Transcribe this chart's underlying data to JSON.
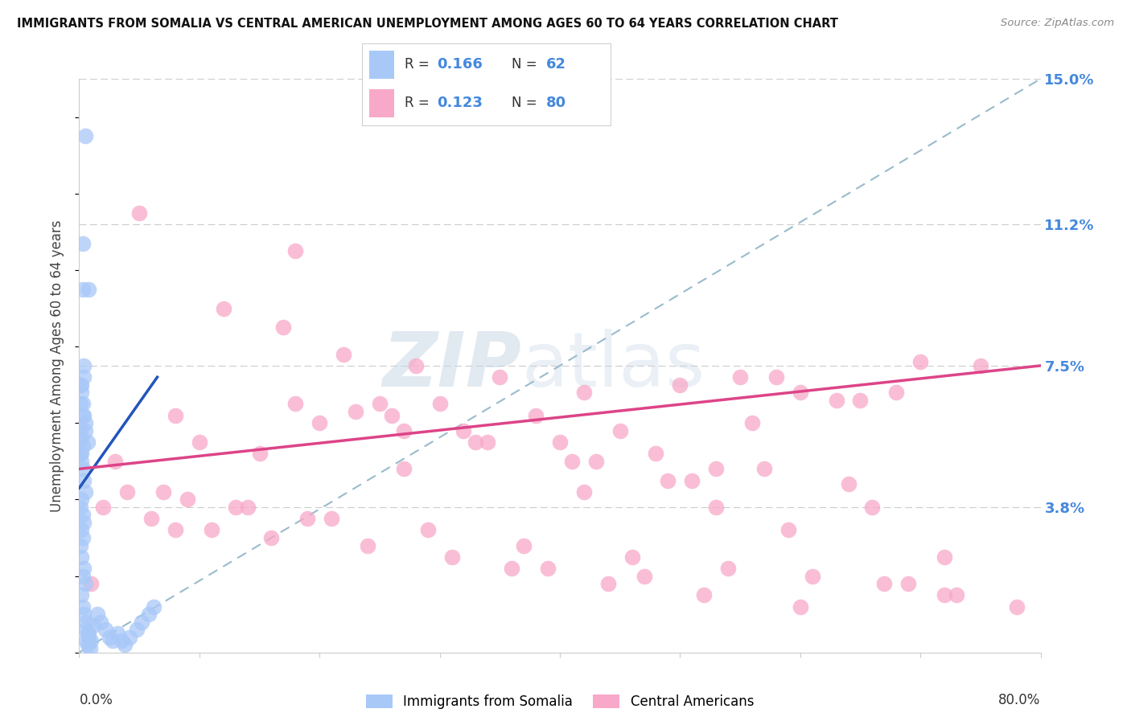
{
  "title": "IMMIGRANTS FROM SOMALIA VS CENTRAL AMERICAN UNEMPLOYMENT AMONG AGES 60 TO 64 YEARS CORRELATION CHART",
  "source": "Source: ZipAtlas.com",
  "ylabel": "Unemployment Among Ages 60 to 64 years",
  "xlim": [
    0.0,
    0.8
  ],
  "ylim": [
    0.0,
    0.15
  ],
  "ytick_vals": [
    0.038,
    0.075,
    0.112,
    0.15
  ],
  "ytick_labels": [
    "3.8%",
    "7.5%",
    "11.2%",
    "15.0%"
  ],
  "somalia_color": "#a8c8f8",
  "central_color": "#f8a8c8",
  "somalia_line_color": "#2255bb",
  "central_line_color": "#dd4488",
  "dashed_line_color": "#99bbcc",
  "somalia_x": [
    0.005,
    0.003,
    0.008,
    0.004,
    0.002,
    0.001,
    0.003,
    0.005,
    0.007,
    0.002,
    0.004,
    0.001,
    0.002,
    0.003,
    0.004,
    0.005,
    0.001,
    0.002,
    0.003,
    0.001,
    0.002,
    0.003,
    0.004,
    0.005,
    0.002,
    0.001,
    0.003,
    0.004,
    0.002,
    0.003,
    0.001,
    0.002,
    0.004,
    0.003,
    0.005,
    0.002,
    0.003,
    0.004,
    0.006,
    0.005,
    0.007,
    0.008,
    0.006,
    0.007,
    0.009,
    0.01,
    0.008,
    0.012,
    0.015,
    0.018,
    0.022,
    0.025,
    0.028,
    0.032,
    0.035,
    0.038,
    0.042,
    0.048,
    0.052,
    0.058,
    0.062,
    0.003
  ],
  "somalia_y": [
    0.135,
    0.107,
    0.095,
    0.075,
    0.07,
    0.065,
    0.062,
    0.058,
    0.055,
    0.052,
    0.072,
    0.07,
    0.068,
    0.065,
    0.062,
    0.06,
    0.058,
    0.056,
    0.054,
    0.052,
    0.05,
    0.048,
    0.045,
    0.042,
    0.04,
    0.038,
    0.036,
    0.034,
    0.032,
    0.03,
    0.028,
    0.025,
    0.022,
    0.02,
    0.018,
    0.015,
    0.012,
    0.01,
    0.008,
    0.006,
    0.005,
    0.004,
    0.003,
    0.002,
    0.001,
    0.003,
    0.005,
    0.007,
    0.01,
    0.008,
    0.006,
    0.004,
    0.003,
    0.005,
    0.003,
    0.002,
    0.004,
    0.006,
    0.008,
    0.01,
    0.012,
    0.095
  ],
  "central_x": [
    0.05,
    0.18,
    0.22,
    0.28,
    0.35,
    0.42,
    0.5,
    0.58,
    0.65,
    0.7,
    0.75,
    0.03,
    0.08,
    0.12,
    0.17,
    0.23,
    0.3,
    0.38,
    0.45,
    0.55,
    0.6,
    0.1,
    0.15,
    0.25,
    0.32,
    0.4,
    0.48,
    0.56,
    0.63,
    0.68,
    0.72,
    0.78,
    0.04,
    0.09,
    0.14,
    0.2,
    0.26,
    0.33,
    0.41,
    0.49,
    0.57,
    0.64,
    0.02,
    0.06,
    0.11,
    0.16,
    0.24,
    0.31,
    0.39,
    0.47,
    0.53,
    0.59,
    0.66,
    0.01,
    0.07,
    0.13,
    0.19,
    0.27,
    0.36,
    0.44,
    0.52,
    0.6,
    0.67,
    0.73,
    0.21,
    0.29,
    0.37,
    0.46,
    0.54,
    0.61,
    0.69,
    0.34,
    0.43,
    0.51,
    0.08,
    0.42,
    0.18,
    0.72,
    0.27,
    0.53
  ],
  "central_y": [
    0.115,
    0.105,
    0.078,
    0.075,
    0.072,
    0.068,
    0.07,
    0.072,
    0.066,
    0.076,
    0.075,
    0.05,
    0.062,
    0.09,
    0.085,
    0.063,
    0.065,
    0.062,
    0.058,
    0.072,
    0.068,
    0.055,
    0.052,
    0.065,
    0.058,
    0.055,
    0.052,
    0.06,
    0.066,
    0.068,
    0.015,
    0.012,
    0.042,
    0.04,
    0.038,
    0.06,
    0.062,
    0.055,
    0.05,
    0.045,
    0.048,
    0.044,
    0.038,
    0.035,
    0.032,
    0.03,
    0.028,
    0.025,
    0.022,
    0.02,
    0.048,
    0.032,
    0.038,
    0.018,
    0.042,
    0.038,
    0.035,
    0.058,
    0.022,
    0.018,
    0.015,
    0.012,
    0.018,
    0.015,
    0.035,
    0.032,
    0.028,
    0.025,
    0.022,
    0.02,
    0.018,
    0.055,
    0.05,
    0.045,
    0.032,
    0.042,
    0.065,
    0.025,
    0.048,
    0.038
  ],
  "somalia_line_x": [
    0.0,
    0.065
  ],
  "somalia_line_y": [
    0.043,
    0.072
  ],
  "central_line_x": [
    0.0,
    0.8
  ],
  "central_line_y": [
    0.048,
    0.075
  ]
}
